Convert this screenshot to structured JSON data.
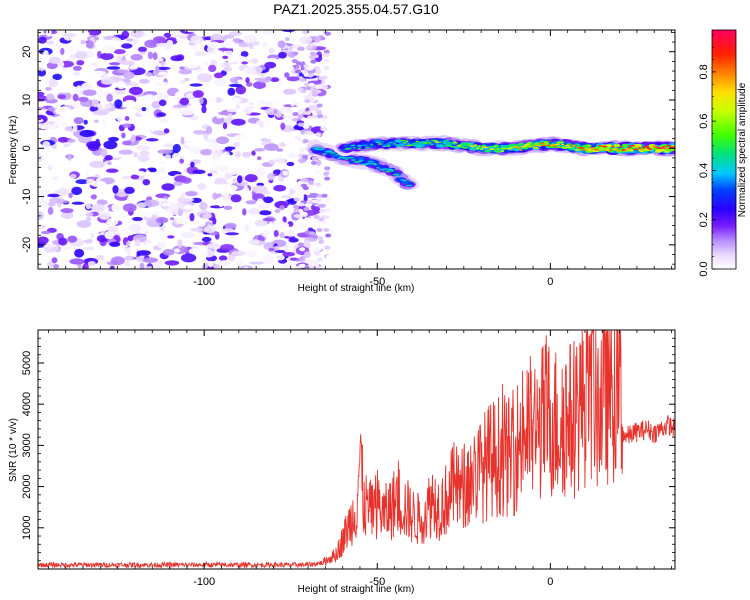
{
  "title": "PAZ1.2025.355.04.57.G10",
  "chart_data": [
    {
      "type": "heatmap",
      "name": "spectrogram",
      "xlabel": "Height of straight line (km)",
      "ylabel": "Frequency (Hz)",
      "xlim": [
        -148,
        36
      ],
      "ylim": [
        -25,
        24.5
      ],
      "xticks": [
        -100,
        -50,
        0
      ],
      "xtick_labels": [
        "-100",
        "-50",
        "0"
      ],
      "yticks": [
        20,
        10,
        0,
        -10,
        -20
      ],
      "ytick_labels": [
        "20",
        "10",
        "0",
        "-10",
        "-20"
      ],
      "colorbar": {
        "label": "Normalized spectral amplitude",
        "range": [
          0,
          0.97
        ],
        "ticks": [
          0.0,
          0.2,
          0.4,
          0.6,
          0.8
        ],
        "tick_labels": [
          "0.0",
          "0.2",
          "0.4",
          "0.6",
          "0.8"
        ],
        "colors": [
          "#ffffff",
          "#e9d8ff",
          "#b68cff",
          "#7a1cff",
          "#2a00ff",
          "#0040ff",
          "#00c8ff",
          "#00e080",
          "#40ff00",
          "#c8ff00",
          "#ffe000",
          "#ff8000",
          "#ff2000",
          "#ff0060"
        ]
      },
      "ridge": {
        "description_points": [
          [
            -68,
            0
          ],
          [
            -60,
            -2
          ],
          [
            -52,
            -3
          ],
          [
            -45,
            -5
          ],
          [
            -40,
            -8
          ]
        ],
        "main_points": [
          [
            -60,
            0
          ],
          [
            -50,
            1
          ],
          [
            -40,
            1
          ],
          [
            -30,
            1
          ],
          [
            -20,
            0
          ],
          [
            -10,
            0
          ],
          [
            0,
            1
          ],
          [
            10,
            0
          ],
          [
            20,
            0
          ],
          [
            30,
            0
          ],
          [
            36,
            0
          ]
        ],
        "peak_amplitude": 0.95
      },
      "noise_region": {
        "x_from": -148,
        "x_to": -66,
        "amplitude": "low (0.0-0.3)"
      }
    },
    {
      "type": "line",
      "name": "snr",
      "xlabel": "Height of straight line (km)",
      "ylabel": "SNR (10 * v/v)",
      "xlim": [
        -148,
        36
      ],
      "ylim": [
        0,
        5800
      ],
      "xticks": [
        -100,
        -50,
        0
      ],
      "xtick_labels": [
        "-100",
        "-50",
        "0"
      ],
      "yticks": [
        1000,
        2000,
        3000,
        4000,
        5000
      ],
      "ytick_labels": [
        "1000",
        "2000",
        "3000",
        "4000",
        "5000"
      ],
      "color": "#e8322c",
      "series": [
        {
          "name": "SNR",
          "x": [
            -148,
            -70,
            -66,
            -62,
            -60,
            -58,
            -56,
            -55,
            -54,
            -52,
            -50,
            -48,
            -46,
            -44,
            -42,
            -40,
            -38,
            -36,
            -34,
            -32,
            -30,
            -28,
            -26,
            -24,
            -22,
            -20,
            -18,
            -16,
            -14,
            -12,
            -10,
            -8,
            -6,
            -4,
            -2,
            0,
            2,
            4,
            6,
            8,
            10,
            12,
            14,
            16,
            18,
            20,
            21,
            22,
            24,
            26,
            28,
            30,
            32,
            34,
            36
          ],
          "y": [
            100,
            100,
            150,
            350,
            700,
            1100,
            1500,
            2800,
            1600,
            1400,
            1600,
            1300,
            1500,
            1700,
            1500,
            1300,
            1200,
            1400,
            1700,
            1500,
            1700,
            2000,
            1900,
            2100,
            2300,
            2400,
            2600,
            2700,
            2800,
            2700,
            2900,
            3300,
            3400,
            3300,
            3600,
            3700,
            3500,
            3700,
            3600,
            3900,
            4300,
            4600,
            4000,
            4400,
            4500,
            4600,
            3300,
            3200,
            3300,
            3350,
            3400,
            3300,
            3400,
            3500,
            3400
          ]
        }
      ]
    }
  ]
}
